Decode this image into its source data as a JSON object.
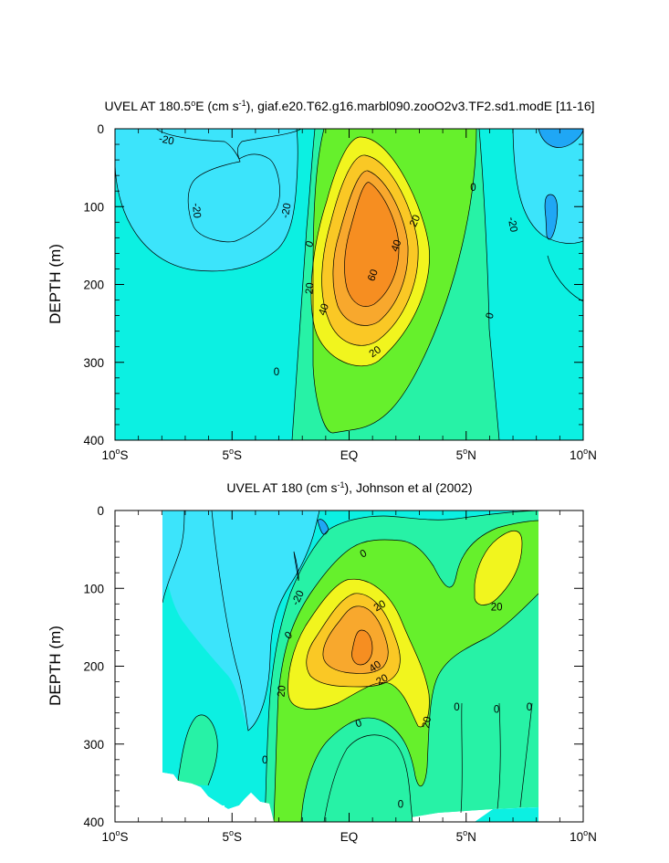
{
  "colors": {
    "lt_neg20": "#1fa7f5",
    "m20_m10": "#3ce4fb",
    "m10_0": "#0cf0e2",
    "c0_10": "#27f2a6",
    "c10_20": "#66f02c",
    "c20_30": "#f1f51e",
    "c30_40": "#fac825",
    "c40_50": "#f8a82d",
    "c50_60": "#f68e21",
    "missing": "#ffffff"
  },
  "chart_data": [
    {
      "type": "heatmap",
      "title": "UVEL AT 180.5°E (cm s⁻¹), giaf.e20.T62.g16.marbl090.zooO2v3.TF2.sd1.modE [11-16]",
      "title_parts": [
        "UVEL AT 180.5",
        "o",
        "E (cm s",
        "-1",
        "), giaf.e20.T62.g16.marbl090.zooO2v3.TF2.sd1.modE [11-16]"
      ],
      "ylabel": "DEPTH (m)",
      "xlabel": "",
      "xlim": [
        -10,
        10
      ],
      "ylim": [
        400,
        0
      ],
      "x_ticks": [
        {
          "value": -10,
          "num": "10",
          "deg": "o",
          "hem": "S"
        },
        {
          "value": -5,
          "num": "5",
          "deg": "o",
          "hem": "S"
        },
        {
          "value": 0,
          "num": "EQ",
          "deg": "",
          "hem": ""
        },
        {
          "value": 5,
          "num": "5",
          "deg": "o",
          "hem": "N"
        },
        {
          "value": 10,
          "num": "10",
          "deg": "o",
          "hem": "N"
        }
      ],
      "y_ticks": [
        0,
        100,
        200,
        300,
        400
      ],
      "contour_levels": [
        -20,
        -10,
        0,
        10,
        20,
        30,
        40,
        50,
        60
      ],
      "contour_labels": [
        {
          "text": "-20",
          "x": -7.8,
          "y": 14,
          "rot": 12
        },
        {
          "text": "-20",
          "x": -6.5,
          "y": 105,
          "rot": 85
        },
        {
          "text": "-20",
          "x": -2.7,
          "y": 105,
          "rot": -80
        },
        {
          "text": "0",
          "x": -1.7,
          "y": 148,
          "rot": -70
        },
        {
          "text": "0",
          "x": 5.3,
          "y": 75,
          "rot": 0
        },
        {
          "text": "-20",
          "x": 7.0,
          "y": 123,
          "rot": 80
        },
        {
          "text": "20",
          "x": 2.8,
          "y": 118,
          "rot": -65
        },
        {
          "text": "40",
          "x": 2.0,
          "y": 150,
          "rot": -70
        },
        {
          "text": "60",
          "x": 1.0,
          "y": 188,
          "rot": -70
        },
        {
          "text": "20",
          "x": -1.7,
          "y": 205,
          "rot": -85
        },
        {
          "text": "40",
          "x": -1.1,
          "y": 232,
          "rot": -70
        },
        {
          "text": "0",
          "x": 6.0,
          "y": 240,
          "rot": -75
        },
        {
          "text": "20",
          "x": 1.1,
          "y": 286,
          "rot": -35
        },
        {
          "text": "0",
          "x": -3.1,
          "y": 312,
          "rot": 0
        }
      ]
    },
    {
      "type": "heatmap",
      "title": "UVEL AT 180 (cm s⁻¹), Johnson et al (2002)",
      "title_parts": [
        "UVEL AT 180 (cm s",
        "-1",
        "), Johnson et al (2002)"
      ],
      "ylabel": "DEPTH (m)",
      "xlabel": "",
      "xlim": [
        -10,
        10
      ],
      "ylim": [
        400,
        0
      ],
      "data_x_range": [
        -8,
        8
      ],
      "x_ticks": [
        {
          "value": -10,
          "num": "10",
          "deg": "o",
          "hem": "S"
        },
        {
          "value": -5,
          "num": "5",
          "deg": "o",
          "hem": "S"
        },
        {
          "value": 0,
          "num": "EQ",
          "deg": "",
          "hem": ""
        },
        {
          "value": 5,
          "num": "5",
          "deg": "o",
          "hem": "N"
        },
        {
          "value": 10,
          "num": "10",
          "deg": "o",
          "hem": "N"
        }
      ],
      "y_ticks": [
        0,
        100,
        200,
        300,
        400
      ],
      "contour_levels": [
        -20,
        -10,
        0,
        10,
        20,
        30,
        40,
        50
      ],
      "contour_labels": [
        {
          "text": "-20",
          "x": -2.2,
          "y": 112,
          "rot": -65
        },
        {
          "text": "0",
          "x": -2.6,
          "y": 160,
          "rot": -45
        },
        {
          "text": "0",
          "x": 0.6,
          "y": 55,
          "rot": -30
        },
        {
          "text": "20",
          "x": 1.3,
          "y": 122,
          "rot": -30
        },
        {
          "text": "20",
          "x": 6.3,
          "y": 124,
          "rot": 0
        },
        {
          "text": "40",
          "x": 1.1,
          "y": 200,
          "rot": -35
        },
        {
          "text": "20",
          "x": -2.9,
          "y": 232,
          "rot": -85
        },
        {
          "text": "20",
          "x": 1.4,
          "y": 217,
          "rot": -30
        },
        {
          "text": "20",
          "x": 3.3,
          "y": 272,
          "rot": -80
        },
        {
          "text": "0",
          "x": 0.4,
          "y": 273,
          "rot": -20
        },
        {
          "text": "0",
          "x": 4.6,
          "y": 252,
          "rot": 0
        },
        {
          "text": "0",
          "x": 6.3,
          "y": 255,
          "rot": 0
        },
        {
          "text": "0",
          "x": 7.7,
          "y": 252,
          "rot": 0
        },
        {
          "text": "0",
          "x": -3.6,
          "y": 320,
          "rot": 0
        },
        {
          "text": "0",
          "x": 2.2,
          "y": 377,
          "rot": 0
        }
      ]
    }
  ]
}
